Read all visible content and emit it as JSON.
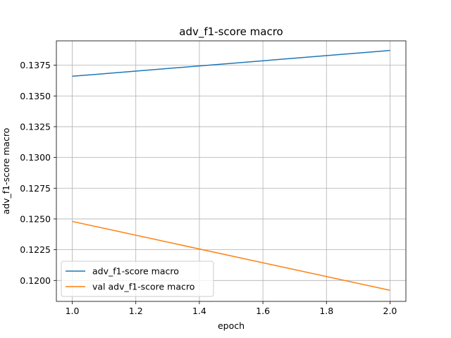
{
  "chart_data": {
    "type": "line",
    "title": "adv_f1-score macro",
    "xlabel": "epoch",
    "ylabel": "adv_f1-score macro",
    "xlim": [
      0.95,
      2.05
    ],
    "ylim": [
      0.1183,
      0.13948
    ],
    "xticks": [
      1.0,
      1.2,
      1.4,
      1.6,
      1.8,
      2.0
    ],
    "xtick_labels": [
      "1.0",
      "1.2",
      "1.4",
      "1.6",
      "1.8",
      "2.0"
    ],
    "yticks": [
      0.12,
      0.1225,
      0.125,
      0.1275,
      0.13,
      0.1325,
      0.135,
      0.1375
    ],
    "ytick_labels": [
      "0.1200",
      "0.1225",
      "0.1250",
      "0.1275",
      "0.1300",
      "0.1325",
      "0.1350",
      "0.1375"
    ],
    "grid": true,
    "legend_position": "lower-left",
    "series": [
      {
        "name": "adv_f1-score macro",
        "color": "#1f77b4",
        "x": [
          1.0,
          2.0
        ],
        "y": [
          0.1366,
          0.1387
        ]
      },
      {
        "name": "val adv_f1-score macro",
        "color": "#ff7f0e",
        "x": [
          1.0,
          2.0
        ],
        "y": [
          0.1248,
          0.1192
        ]
      }
    ]
  }
}
